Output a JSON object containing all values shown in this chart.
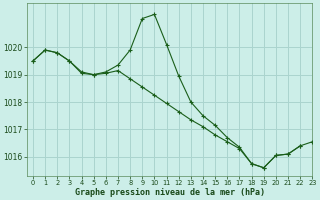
{
  "title": "Graphe pression niveau de la mer (hPa)",
  "background_color": "#cceee8",
  "grid_color": "#aad4ce",
  "line_color": "#1a5e1a",
  "marker_color": "#1a5e1a",
  "xlim": [
    -0.5,
    23
  ],
  "ylim": [
    1015.3,
    1021.6
  ],
  "yticks": [
    1016,
    1017,
    1018,
    1019,
    1020
  ],
  "xticks": [
    0,
    1,
    2,
    3,
    4,
    5,
    6,
    7,
    8,
    9,
    10,
    11,
    12,
    13,
    14,
    15,
    16,
    17,
    18,
    19,
    20,
    21,
    22,
    23
  ],
  "series_peak": [
    1019.5,
    1019.9,
    1019.8,
    1019.5,
    1019.1,
    1019.0,
    1019.1,
    1019.35,
    1019.9,
    1021.05,
    1021.2,
    1020.1,
    1018.95,
    1018.0,
    1017.5,
    1017.15,
    1016.7,
    1016.35,
    1015.75,
    1015.6,
    1016.05,
    1016.1,
    1016.4,
    null
  ],
  "series_diag": [
    1019.5,
    1019.9,
    1019.8,
    1019.5,
    1019.05,
    1019.0,
    1019.05,
    1019.15,
    1018.85,
    1018.55,
    1018.25,
    1017.95,
    1017.65,
    1017.35,
    1017.1,
    1016.8,
    1016.55,
    1016.3,
    1015.75,
    1015.6,
    1016.05,
    1016.1,
    1016.4,
    1016.55
  ]
}
